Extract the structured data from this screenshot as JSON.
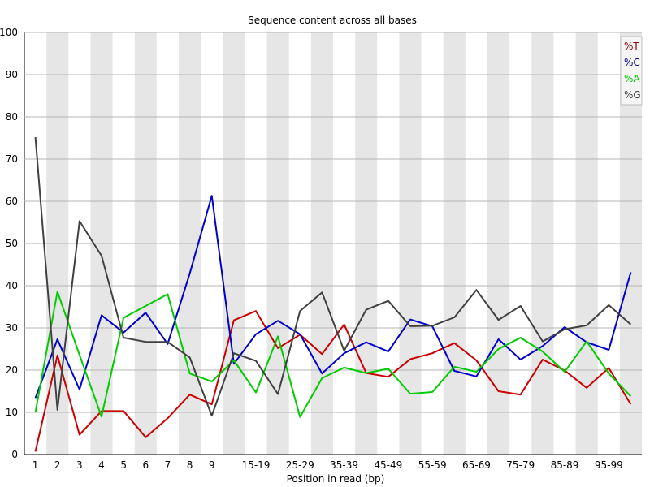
{
  "chart_data": {
    "type": "line",
    "title": "Sequence content across all bases",
    "xlabel": "Position in read (bp)",
    "ylabel": "",
    "ylim": [
      0,
      100
    ],
    "yticks": [
      0,
      10,
      20,
      30,
      40,
      50,
      60,
      70,
      80,
      90,
      100
    ],
    "grid": "alternating vertical bands",
    "legend_position": "top-right",
    "categories": [
      "1",
      "2",
      "3",
      "4",
      "5",
      "6",
      "7",
      "8",
      "9",
      "10-14",
      "15-19",
      "20-24",
      "25-29",
      "30-34",
      "35-39",
      "40-44",
      "45-49",
      "50-54",
      "55-59",
      "60-64",
      "65-69",
      "70-74",
      "75-79",
      "80-84",
      "85-89",
      "90-94",
      "95-99",
      "100-101"
    ],
    "category_labels": [
      "1",
      "2",
      "3",
      "4",
      "5",
      "6",
      "7",
      "8",
      "9",
      "",
      "15-19",
      "",
      "25-29",
      "",
      "35-39",
      "",
      "45-49",
      "",
      "55-59",
      "",
      "65-69",
      "",
      "75-79",
      "",
      "85-89",
      "",
      "95-99",
      ""
    ],
    "series": [
      {
        "name": "%T",
        "color": "#cc0000",
        "values": [
          0.7,
          23.5,
          4.7,
          10.3,
          10.3,
          4.1,
          8.6,
          14.2,
          11.9,
          31.8,
          34.0,
          25.2,
          28.4,
          23.8,
          30.8,
          19.3,
          18.4,
          22.6,
          24.0,
          26.4,
          22.3,
          15.0,
          14.2,
          22.5,
          19.9,
          15.8,
          20.5,
          11.9
        ]
      },
      {
        "name": "%C",
        "color": "#0000cc",
        "values": [
          13.4,
          27.3,
          15.4,
          33.0,
          28.9,
          33.6,
          26.2,
          42.9,
          61.3,
          21.5,
          28.5,
          31.7,
          28.5,
          19.2,
          24.0,
          26.6,
          24.4,
          32.0,
          30.4,
          19.8,
          18.5,
          27.3,
          22.5,
          25.7,
          30.2,
          26.6,
          24.8,
          43.2
        ]
      },
      {
        "name": "%A",
        "color": "#00cc00",
        "values": [
          10.0,
          38.6,
          23.6,
          9.0,
          32.4,
          35.2,
          38.0,
          19.2,
          17.3,
          22.3,
          14.7,
          28.0,
          8.9,
          18.1,
          20.6,
          19.3,
          20.3,
          14.4,
          14.8,
          20.8,
          19.6,
          25.0,
          27.7,
          24.4,
          19.6,
          26.8,
          19.2,
          13.8
        ]
      },
      {
        "name": "%G",
        "color": "#404040",
        "values": [
          75.2,
          10.6,
          55.3,
          47.1,
          27.7,
          26.7,
          26.7,
          23.0,
          9.2,
          24.0,
          22.2,
          14.3,
          34.0,
          38.4,
          24.6,
          34.3,
          36.4,
          30.4,
          30.5,
          32.5,
          39.0,
          31.9,
          35.2,
          26.8,
          29.7,
          30.6,
          35.4,
          30.8
        ]
      }
    ]
  }
}
